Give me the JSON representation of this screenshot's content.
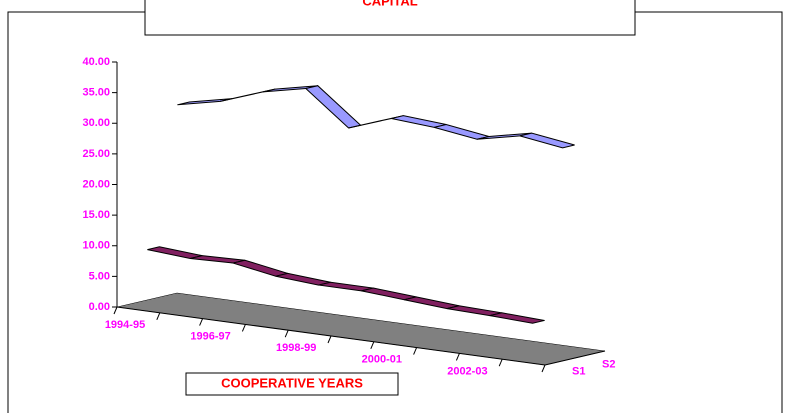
{
  "chart_data": {
    "type": "line3d",
    "title": "CAPITAL",
    "x_label": "COOPERATIVE YEARS",
    "categories": [
      "1994-95",
      null,
      "1996-97",
      null,
      "1998-99",
      null,
      "2000-01",
      null,
      "2002-03",
      null
    ],
    "series": [
      {
        "name": "S1",
        "color": "#802060",
        "values": [
          9.5,
          9,
          9.2,
          8,
          7.5,
          7.5,
          7,
          6.5,
          6.3,
          6
        ]
      },
      {
        "name": "S2",
        "color": "#9999ff",
        "values": [
          32,
          33.5,
          36,
          37.5,
          32,
          34.5,
          34,
          33,
          34.5,
          33.5
        ]
      }
    ],
    "ylim": [
      0,
      40
    ],
    "yticks": [
      {
        "value": 0,
        "label": "0.00"
      },
      {
        "value": 5,
        "label": "5.00"
      },
      {
        "value": 10,
        "label": "10.00"
      },
      {
        "value": 15,
        "label": "15.00"
      },
      {
        "value": 20,
        "label": "20.00"
      },
      {
        "value": 25,
        "label": "25.00"
      },
      {
        "value": 30,
        "label": "30.00"
      },
      {
        "value": 35,
        "label": "35.00"
      },
      {
        "value": 40,
        "label": "40.00"
      }
    ]
  }
}
